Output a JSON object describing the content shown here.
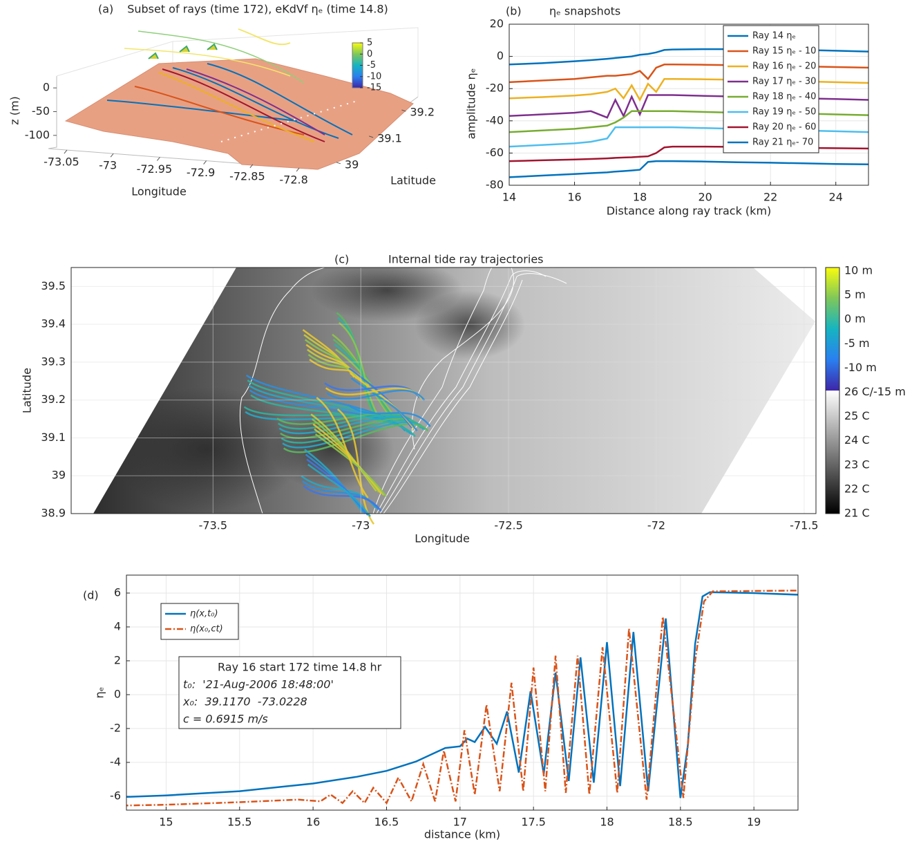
{
  "chart_data": [
    {
      "type": "surface3d",
      "panel_label": "(a)",
      "title": "Subset of rays (time 172), eKdVf ηₑ (time 14.8)",
      "xlabel": "Longitude",
      "ylabel": "Latitude",
      "zlabel": "z (m)",
      "xlim": [
        -73.07,
        -72.78
      ],
      "xticks": [
        -73.05,
        -73,
        -72.95,
        -72.9,
        -72.85,
        -72.8
      ],
      "ylim": [
        38.96,
        39.25
      ],
      "yticks": [
        39,
        39.1,
        39.2
      ],
      "zlim": [
        -125,
        25
      ],
      "zticks": [
        -100,
        -50,
        0
      ],
      "clim": [
        -15,
        5
      ],
      "cticks": [
        -15,
        -10,
        -5,
        0,
        5
      ]
    },
    {
      "type": "line",
      "panel_label": "(b)",
      "title": "ηₑ snapshots",
      "xlabel": "Distance along ray track (km)",
      "ylabel": "amplitude ηₑ",
      "x": [
        14,
        15,
        16,
        16.5,
        17,
        17.25,
        17.5,
        17.75,
        18,
        18.25,
        18.5,
        18.75,
        19,
        20,
        21,
        22,
        23,
        24,
        25
      ],
      "xlim": [
        14,
        25
      ],
      "xticks": [
        14,
        16,
        18,
        20,
        22,
        24
      ],
      "ylim": [
        -80,
        20
      ],
      "yticks": [
        -80,
        -60,
        -40,
        -20,
        0,
        20
      ],
      "grid": true,
      "legend": "upper right",
      "series": [
        {
          "name": "Ray 14 ηₑ",
          "color": "#0072bd",
          "values": [
            -5,
            -4.2,
            -3,
            -2.3,
            -1.5,
            -1,
            -0.5,
            0,
            1,
            1.5,
            2.5,
            4,
            4.3,
            4.5,
            4.5,
            4.3,
            4,
            3.5,
            3
          ]
        },
        {
          "name": "Ray 15 ηₑ - 10",
          "color": "#d95319",
          "values": [
            -16,
            -15,
            -14,
            -13,
            -12,
            -12,
            -11.5,
            -11,
            -9,
            -14,
            -7,
            -5,
            -5,
            -5.2,
            -5.5,
            -5.8,
            -6.2,
            -6.6,
            -7
          ]
        },
        {
          "name": "Ray 16 ηₑ - 20",
          "color": "#edb120",
          "values": [
            -26,
            -25.3,
            -24.3,
            -23.5,
            -22,
            -20,
            -26,
            -18,
            -27,
            -17,
            -22,
            -14,
            -14,
            -14.2,
            -14.5,
            -15,
            -15.5,
            -16,
            -16.5
          ]
        },
        {
          "name": "Ray 17 ηₑ - 30",
          "color": "#7e2f8e",
          "values": [
            -37,
            -36,
            -35,
            -34,
            -38,
            -27,
            -37,
            -25,
            -36,
            -24,
            -24,
            -24,
            -24,
            -24.5,
            -25,
            -25.5,
            -26,
            -26.5,
            -27
          ]
        },
        {
          "name": "Ray 18 ηₑ - 40",
          "color": "#77ac30",
          "values": [
            -47,
            -46,
            -45,
            -44,
            -43,
            -41,
            -38,
            -34,
            -34,
            -34,
            -34,
            -34,
            -34,
            -34.5,
            -35,
            -35,
            -35.5,
            -36,
            -36.5
          ]
        },
        {
          "name": "Ray 19 ηₑ - 50",
          "color": "#4dbeee",
          "values": [
            -56,
            -55,
            -54,
            -53,
            -51,
            -44,
            -44,
            -44,
            -44,
            -44,
            -44,
            -44,
            -44,
            -44.5,
            -45,
            -45.5,
            -46,
            -46.5,
            -47
          ]
        },
        {
          "name": "Ray 20 ηₑ - 60",
          "color": "#a2142f",
          "values": [
            -65,
            -64.5,
            -64,
            -63.7,
            -63.3,
            -63,
            -62.8,
            -62.6,
            -62.3,
            -62,
            -60,
            -56.5,
            -56,
            -56,
            -56.2,
            -56.5,
            -56.8,
            -57,
            -57.2
          ]
        },
        {
          "name": "Ray 21 ηₑ- 70",
          "color": "#0072bd",
          "values": [
            -75,
            -74,
            -73,
            -72.5,
            -72,
            -71.5,
            -71.2,
            -70.8,
            -70.4,
            -65.5,
            -65,
            -65,
            -65,
            -65.3,
            -65.7,
            -66,
            -66.4,
            -66.8,
            -67
          ]
        }
      ]
    },
    {
      "type": "map",
      "panel_label": "(c)",
      "title": "Internal tide ray trajectories",
      "xlabel": "Longitude",
      "ylabel": "Latitude",
      "xlim": [
        -73.98,
        -71.46
      ],
      "xticks": [
        -73.5,
        -73,
        -72.5,
        -72,
        -71.5
      ],
      "ylim": [
        38.9,
        39.55
      ],
      "yticks": [
        38.9,
        39,
        39.1,
        39.2,
        39.3,
        39.4,
        39.5
      ],
      "grid": true,
      "colorbar_labels": [
        "10 m",
        "5 m",
        "0 m",
        "-5 m",
        "-10 m",
        "26 C/-15 m",
        "25 C",
        "24 C",
        "23 C",
        "22 C",
        "21 C"
      ]
    },
    {
      "type": "line",
      "panel_label": "(d)",
      "xlabel": "distance (km)",
      "ylabel": "ηₑ",
      "xlim": [
        14.73,
        19.3
      ],
      "xticks": [
        15,
        15.5,
        16,
        16.5,
        17,
        17.5,
        18,
        18.5,
        19
      ],
      "ylim": [
        -6.82,
        7.06
      ],
      "yticks": [
        -6,
        -4,
        -2,
        0,
        2,
        4,
        6
      ],
      "grid": true,
      "legend": "upper left",
      "annotation": [
        "Ray 16 start 172 time 14.8 hr",
        "t₀:  '21-Aug-2006 18:48:00'",
        "x₀:  39.1170  -73.0228",
        "c = 0.6915 m/s"
      ],
      "series": [
        {
          "name": "η(x,t₀)",
          "color": "#0072bd",
          "linestyle": "solid",
          "x": [
            14.7,
            15,
            15.5,
            16,
            16.3,
            16.5,
            16.7,
            16.8,
            16.9,
            17.0,
            17.05,
            17.1,
            17.17,
            17.25,
            17.32,
            17.4,
            17.48,
            17.57,
            17.65,
            17.74,
            17.82,
            17.91,
            18.0,
            18.09,
            18.18,
            18.28,
            18.4,
            18.5,
            18.55,
            18.6,
            18.65,
            18.7,
            19,
            19.3
          ],
          "values": [
            -6.05,
            -5.95,
            -5.7,
            -5.25,
            -4.85,
            -4.5,
            -3.95,
            -3.55,
            -3.15,
            -3.05,
            -2.6,
            -2.8,
            -1.9,
            -2.9,
            -1.0,
            -4.6,
            0.2,
            -4.7,
            1.3,
            -5.1,
            2.2,
            -5.2,
            3.1,
            -5.4,
            3.7,
            -5.7,
            4.5,
            -6.1,
            -3,
            3,
            5.8,
            6.05,
            6.0,
            5.9
          ]
        },
        {
          "name": "η(x₀,ct)",
          "color": "#d95319",
          "linestyle": "dashdot",
          "x": [
            14.7,
            15,
            15.5,
            15.9,
            16.05,
            16.12,
            16.2,
            16.27,
            16.35,
            16.41,
            16.5,
            16.58,
            16.67,
            16.75,
            16.83,
            16.89,
            16.97,
            17.03,
            17.1,
            17.18,
            17.27,
            17.35,
            17.43,
            17.5,
            17.58,
            17.65,
            17.72,
            17.8,
            17.88,
            17.97,
            18.07,
            18.15,
            18.27,
            18.38,
            18.52,
            18.6,
            18.66,
            18.72,
            19.3
          ],
          "values": [
            -6.55,
            -6.5,
            -6.35,
            -6.2,
            -6.3,
            -5.9,
            -6.4,
            -5.7,
            -6.4,
            -5.5,
            -6.4,
            -4.9,
            -6.3,
            -4.1,
            -6.3,
            -3.3,
            -6.3,
            -2.1,
            -5.9,
            -0.6,
            -5.7,
            0.7,
            -5.7,
            1.6,
            -5.7,
            2.3,
            -5.8,
            2.3,
            -5.9,
            2.8,
            -5.8,
            3.9,
            -6.2,
            4.6,
            -6.1,
            2,
            5.5,
            6.1,
            6.15
          ]
        }
      ]
    }
  ]
}
